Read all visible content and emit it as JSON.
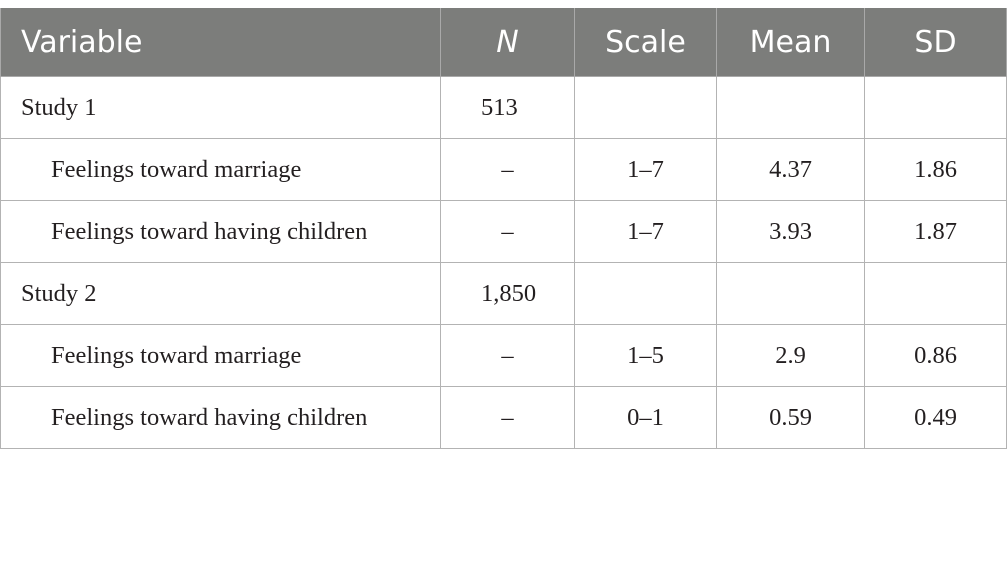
{
  "headers": {
    "variable": "Variable",
    "n": "N",
    "scale": "Scale",
    "mean": "Mean",
    "sd": "SD"
  },
  "rows": [
    {
      "variable": "Study 1",
      "n": "513",
      "scale": "",
      "mean": "",
      "sd": ""
    },
    {
      "variable": "Feelings toward marriage",
      "n": "–",
      "scale": "1–7",
      "mean": "4.37",
      "sd": "1.86"
    },
    {
      "variable": "Feelings toward having children",
      "n": "–",
      "scale": "1–7",
      "mean": "3.93",
      "sd": "1.87"
    },
    {
      "variable": "Study 2",
      "n": "1,850",
      "scale": "",
      "mean": "",
      "sd": ""
    },
    {
      "variable": "Feelings toward marriage",
      "n": "–",
      "scale": "1–5",
      "mean": "2.9",
      "sd": "0.86"
    },
    {
      "variable": "Feelings toward having children",
      "n": "–",
      "scale": "0–1",
      "mean": "0.59",
      "sd": "0.49"
    }
  ]
}
